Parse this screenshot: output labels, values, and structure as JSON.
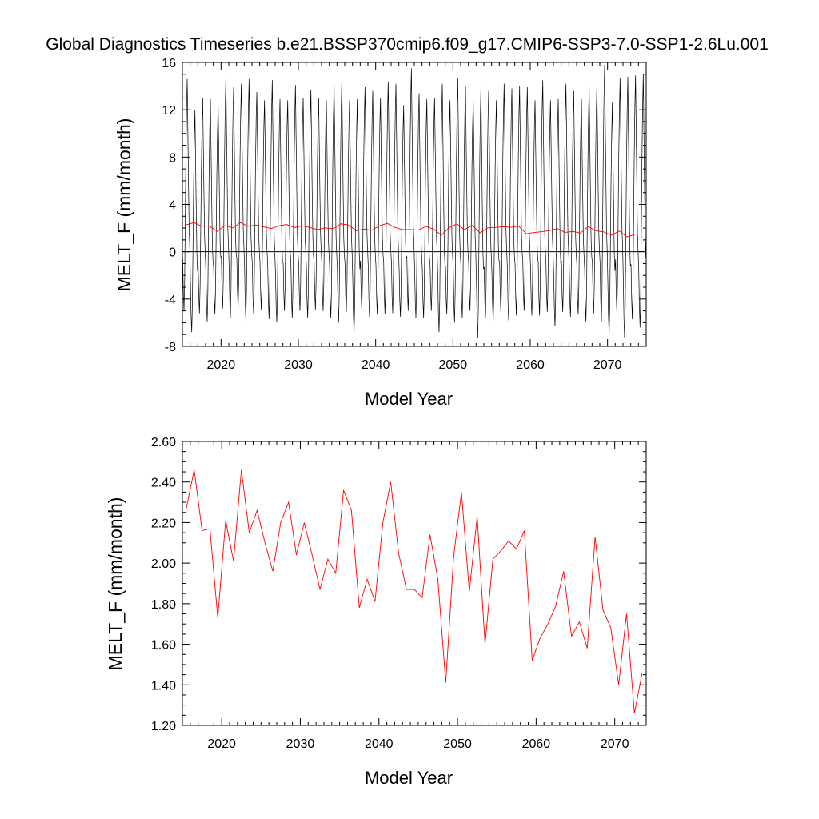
{
  "title": "Global Diagnostics Timeseries b.e21.BSSP370cmip6.f09_g17.CMIP6-SSP3-7.0-SSP1-2.6Lu.001",
  "colors": {
    "monthly": "#000000",
    "annual": "#ff0000",
    "axis": "#000000",
    "background": "#ffffff"
  },
  "chart_data": [
    {
      "type": "line",
      "title": "Global Diagnostics Timeseries b.e21.BSSP370cmip6.f09_g17.CMIP6-SSP3-7.0-SSP1-2.6Lu.001",
      "xlabel": "Model Year",
      "ylabel": "MELT_F (mm/month)",
      "xlim": [
        2015,
        2075
      ],
      "ylim": [
        -8,
        16
      ],
      "x_ticks": [
        "2020",
        "2030",
        "2040",
        "2050",
        "2060",
        "2070"
      ],
      "y_ticks": [
        "-8",
        "-4",
        "0",
        "4",
        "8",
        "12",
        "16"
      ],
      "zero_line": true,
      "series": [
        {
          "style": "monthly-black",
          "x_start": 2015.04,
          "x_step": 0.0833333,
          "seasonal_amplitude_note": "",
          "peaks": [
            14.6,
            12.0,
            13.0,
            12.9,
            12.4,
            14.7,
            13.9,
            14.2,
            14.6,
            13.5,
            12.8,
            14.5,
            12.9,
            12.8,
            14.1,
            13.0,
            13.7,
            13.0,
            12.8,
            14.1,
            14.5,
            12.8,
            12.9,
            13.9,
            13.6,
            13.0,
            14.4,
            14.2,
            12.4,
            15.5,
            13.4,
            12.9,
            13.0,
            14.2,
            12.8,
            14.7,
            14.0,
            12.8,
            13.9,
            13.6,
            12.8,
            14.2,
            13.8,
            14.0,
            13.9,
            12.8,
            14.5,
            12.8,
            12.9,
            14.2,
            13.6,
            12.9,
            13.9,
            14.1,
            15.8,
            12.6,
            14.7,
            14.8,
            14.9,
            15.0
          ],
          "troughs": [
            -5.0,
            -6.8,
            -5.2,
            -5.9,
            -5.3,
            -4.8,
            -5.6,
            -4.8,
            -5.8,
            -5.2,
            -4.9,
            -5.7,
            -6.0,
            -5.0,
            -5.6,
            -5.0,
            -5.6,
            -4.9,
            -5.0,
            -5.6,
            -6.0,
            -5.1,
            -6.9,
            -5.0,
            -5.5,
            -5.3,
            -5.3,
            -5.2,
            -5.5,
            -5.0,
            -5.6,
            -5.6,
            -5.0,
            -6.8,
            -5.3,
            -6.0,
            -5.6,
            -5.0,
            -7.3,
            -5.6,
            -5.9,
            -5.2,
            -5.8,
            -5.4,
            -5.0,
            -5.4,
            -5.4,
            -5.1,
            -6.3,
            -5.1,
            -5.5,
            -5.3,
            -5.9,
            -5.2,
            -5.9,
            -7.0,
            -5.1,
            -7.3,
            -5.7,
            -6.4
          ]
        },
        {
          "style": "annual-red",
          "x_start": 2015.5,
          "x_step": 1,
          "values": [
            2.27,
            2.46,
            2.16,
            2.17,
            1.73,
            2.21,
            2.01,
            2.46,
            2.15,
            2.26,
            2.1,
            1.96,
            2.2,
            2.3,
            2.04,
            2.2,
            2.04,
            1.87,
            2.02,
            1.95,
            2.36,
            2.26,
            1.78,
            1.92,
            1.81,
            2.2,
            2.4,
            2.05,
            1.87,
            1.87,
            1.83,
            2.14,
            1.92,
            1.41,
            2.03,
            2.35,
            1.86,
            2.23,
            1.6,
            2.02,
            2.06,
            2.11,
            2.07,
            2.16,
            1.52,
            1.63,
            1.7,
            1.79,
            1.96,
            1.64,
            1.71,
            1.58,
            2.13,
            1.77,
            1.68,
            1.4,
            1.75,
            1.26,
            1.46
          ]
        }
      ]
    },
    {
      "type": "line",
      "xlabel": "Model Year",
      "ylabel": "MELT_F (mm/month)",
      "xlim": [
        2015,
        2074
      ],
      "ylim": [
        1.2,
        2.6
      ],
      "x_ticks": [
        "2020",
        "2030",
        "2040",
        "2050",
        "2060",
        "2070"
      ],
      "y_ticks": [
        "1.20",
        "1.40",
        "1.60",
        "1.80",
        "2.00",
        "2.20",
        "2.40",
        "2.60"
      ],
      "series": [
        {
          "style": "annual-red",
          "x_start": 2015.5,
          "x_step": 1,
          "values": [
            2.27,
            2.46,
            2.16,
            2.17,
            1.73,
            2.21,
            2.01,
            2.46,
            2.15,
            2.26,
            2.1,
            1.96,
            2.2,
            2.3,
            2.04,
            2.2,
            2.04,
            1.87,
            2.02,
            1.95,
            2.36,
            2.26,
            1.78,
            1.92,
            1.81,
            2.2,
            2.4,
            2.05,
            1.87,
            1.87,
            1.83,
            2.14,
            1.92,
            1.41,
            2.03,
            2.35,
            1.86,
            2.23,
            1.6,
            2.02,
            2.06,
            2.11,
            2.07,
            2.16,
            1.52,
            1.63,
            1.7,
            1.79,
            1.96,
            1.64,
            1.71,
            1.58,
            2.13,
            1.77,
            1.68,
            1.4,
            1.75,
            1.26,
            1.46
          ]
        }
      ]
    }
  ]
}
